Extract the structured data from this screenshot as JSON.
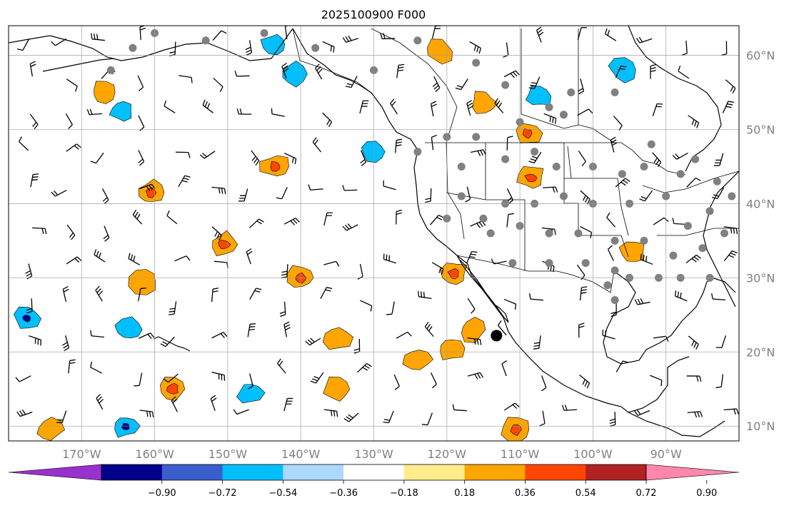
{
  "title": "2025100900 F000",
  "map": {
    "lon_range": [
      -180,
      -80
    ],
    "lat_range": [
      8,
      64
    ],
    "lat_labels": [
      "10°N",
      "20°N",
      "30°N",
      "40°N",
      "50°N",
      "60°N"
    ],
    "lat_values": [
      10,
      20,
      30,
      40,
      50,
      60
    ],
    "lon_labels": [
      "170°W",
      "160°W",
      "150°W",
      "140°W",
      "130°W",
      "120°W",
      "110°W",
      "100°W",
      "90°W"
    ],
    "lon_values": [
      -170,
      -160,
      -150,
      -140,
      -130,
      -120,
      -110,
      -100,
      -90
    ],
    "grid": true,
    "station_marker_color": "#808080",
    "highlight_point": {
      "lon": -113.2,
      "lat": 22.2,
      "color": "#000000"
    },
    "fill_regions_positive": [
      {
        "lon": -160.5,
        "lat": 41.5,
        "level": 0.54
      },
      {
        "lon": -143.5,
        "lat": 45,
        "level": 0.54
      },
      {
        "lon": -150.5,
        "lat": 34.5,
        "level": 0.54
      },
      {
        "lon": -140,
        "lat": 30,
        "level": 0.54
      },
      {
        "lon": -161.5,
        "lat": 29.5,
        "level": 0.36
      },
      {
        "lon": -119,
        "lat": 30.5,
        "level": 0.54
      },
      {
        "lon": -116.5,
        "lat": 23,
        "level": 0.36
      },
      {
        "lon": -119.5,
        "lat": 20.5,
        "level": 0.36
      },
      {
        "lon": -109,
        "lat": 49.5,
        "level": 0.54
      },
      {
        "lon": -108.5,
        "lat": 43.5,
        "level": 0.54
      },
      {
        "lon": -157.5,
        "lat": 15,
        "level": 0.54
      },
      {
        "lon": -110.5,
        "lat": 9.5,
        "level": 0.54
      },
      {
        "lon": -121,
        "lat": 60.5,
        "level": 0.36
      },
      {
        "lon": -115,
        "lat": 53.5,
        "level": 0.36
      },
      {
        "lon": -135,
        "lat": 15,
        "level": 0.36
      },
      {
        "lon": -124,
        "lat": 19,
        "level": 0.36
      },
      {
        "lon": -167,
        "lat": 55,
        "level": 0.36
      },
      {
        "lon": -174.5,
        "lat": 9.5,
        "level": 0.36
      },
      {
        "lon": -94.5,
        "lat": 33.5,
        "level": 0.36
      },
      {
        "lon": -135,
        "lat": 22,
        "level": 0.36
      }
    ],
    "fill_regions_negative": [
      {
        "lon": -141,
        "lat": 57.5,
        "level": -0.54
      },
      {
        "lon": -177.5,
        "lat": 24.5,
        "level": -0.72
      },
      {
        "lon": -163.5,
        "lat": 23,
        "level": -0.54
      },
      {
        "lon": -164,
        "lat": 10,
        "level": -0.72
      },
      {
        "lon": -130,
        "lat": 47,
        "level": -0.54
      },
      {
        "lon": -164.5,
        "lat": 52.5,
        "level": -0.36
      },
      {
        "lon": -96,
        "lat": 58,
        "level": -0.36
      },
      {
        "lon": -107.5,
        "lat": 54.5,
        "level": -0.36
      },
      {
        "lon": -147,
        "lat": 14.5,
        "level": -0.36
      },
      {
        "lon": -143.5,
        "lat": 61.5,
        "level": -0.36
      }
    ]
  },
  "colorbar": {
    "tick_labels": [
      "−0.90",
      "−0.72",
      "−0.54",
      "−0.36",
      "−0.18",
      "0.18",
      "0.36",
      "0.54",
      "0.72",
      "0.90"
    ],
    "ticks": [
      -0.9,
      -0.72,
      -0.54,
      -0.36,
      -0.18,
      0.18,
      0.36,
      0.54,
      0.72,
      0.9
    ],
    "colors": [
      "#9932cc",
      "#00008b",
      "#3a5fcd",
      "#00bfff",
      "#add8ff",
      "#ffffff",
      "#ffec8b",
      "#ffa500",
      "#ff4500",
      "#b22222",
      "#ff88aa"
    ],
    "extend": "both"
  }
}
